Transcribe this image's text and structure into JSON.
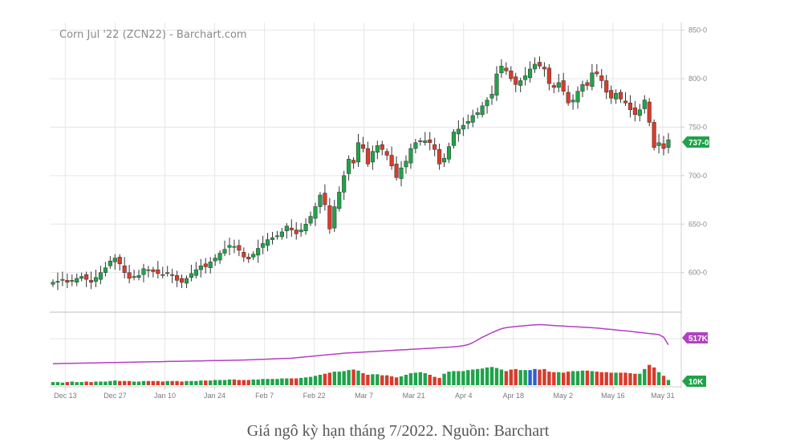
{
  "caption": "Giá ngô kỳ hạn tháng 7/2022. Nguồn: Barchart",
  "chart_data": {
    "type": "candlestick",
    "title": "Corn Jul '22 (ZCN22) - Barchart.com",
    "price_axis": {
      "ticks": [
        "850-0",
        "800-0",
        "750-0",
        "700-0",
        "650-0",
        "600-0"
      ],
      "tick_values": [
        850,
        800,
        750,
        700,
        650,
        600
      ],
      "ylim": [
        560,
        858
      ]
    },
    "x_tick_labels": [
      "Dec 13",
      "Dec 27",
      "Jan 10",
      "Jan 24",
      "Feb 7",
      "Feb 22",
      "Mar 7",
      "Mar 21",
      "Apr 4",
      "Apr 18",
      "May 2",
      "May 16",
      "May 31"
    ],
    "last_price_label": "737-0",
    "open_interest_label": "517K",
    "volume_label": "10K",
    "colors": {
      "up": "#1fa34a",
      "down": "#d93b2b",
      "open_interest": "#b43fc4",
      "neutral_volume": "#2b5fd6",
      "grid": "#e6e6e6"
    },
    "closes": [
      590,
      591,
      593,
      590,
      592,
      594,
      596,
      593,
      590,
      595,
      600,
      605,
      612,
      615,
      609,
      600,
      594,
      596,
      597,
      604,
      603,
      601,
      599,
      598,
      600,
      597,
      592,
      590,
      594,
      599,
      603,
      607,
      606,
      611,
      615,
      620,
      624,
      628,
      627,
      623,
      616,
      614,
      619,
      625,
      630,
      634,
      636,
      638,
      642,
      648,
      644,
      640,
      644,
      650,
      658,
      668,
      680,
      670,
      645,
      668,
      683,
      700,
      717,
      713,
      734,
      728,
      712,
      725,
      731,
      727,
      721,
      710,
      698,
      708,
      715,
      728,
      734,
      735,
      736,
      734,
      727,
      712,
      718,
      730,
      745,
      748,
      752,
      756,
      762,
      765,
      772,
      778,
      784,
      805,
      813,
      808,
      800,
      794,
      798,
      803,
      810,
      815,
      813,
      810,
      795,
      791,
      796,
      787,
      775,
      778,
      787,
      794,
      793,
      806,
      805,
      798,
      786,
      780,
      785,
      779,
      775,
      768,
      763,
      768,
      778,
      755,
      729,
      734,
      728,
      737
    ],
    "volume": [
      6,
      6,
      5,
      6,
      7,
      6,
      6,
      7,
      6,
      7,
      7,
      7,
      8,
      9,
      8,
      8,
      8,
      7,
      7,
      8,
      8,
      8,
      8,
      7,
      8,
      8,
      8,
      7,
      8,
      8,
      8,
      9,
      9,
      9,
      10,
      10,
      10,
      11,
      11,
      10,
      10,
      10,
      11,
      11,
      12,
      12,
      12,
      12,
      13,
      13,
      13,
      13,
      14,
      15,
      16,
      18,
      20,
      22,
      24,
      26,
      26,
      27,
      29,
      30,
      28,
      23,
      20,
      21,
      21,
      19,
      19,
      17,
      15,
      17,
      20,
      23,
      24,
      25,
      23,
      20,
      16,
      14,
      22,
      26,
      27,
      27,
      27,
      29,
      30,
      31,
      32,
      34,
      35,
      33,
      30,
      27,
      30,
      31,
      29,
      29,
      29,
      31,
      30,
      31,
      26,
      25,
      25,
      24,
      26,
      27,
      27,
      28,
      28,
      27,
      26,
      25,
      25,
      24,
      24,
      24,
      24,
      23,
      22,
      22,
      31,
      39,
      34,
      25,
      18,
      10
    ],
    "open_interest": [
      310,
      311,
      312,
      313,
      314,
      315,
      316,
      317,
      318,
      319,
      320,
      321,
      322,
      323,
      324,
      325,
      326,
      327,
      328,
      329,
      330,
      331,
      332,
      333,
      334,
      335,
      336,
      337,
      338,
      339,
      340,
      341,
      342,
      343,
      344,
      345,
      346,
      347,
      348,
      349,
      350,
      352,
      354,
      356,
      358,
      360,
      362,
      364,
      366,
      368,
      370,
      375,
      380,
      385,
      390,
      395,
      400,
      405,
      410,
      415,
      420,
      425,
      428,
      431,
      434,
      437,
      440,
      443,
      446,
      449,
      452,
      455,
      458,
      461,
      464,
      467,
      470,
      473,
      476,
      479,
      482,
      485,
      488,
      491,
      495,
      500,
      508,
      518,
      540,
      570,
      600,
      625,
      650,
      672,
      693,
      705,
      712,
      717,
      722,
      727,
      732,
      736,
      738,
      736,
      732,
      728,
      725,
      722,
      719,
      716,
      713,
      710,
      707,
      704,
      700,
      695,
      690,
      685,
      680,
      675,
      670,
      664,
      658,
      652,
      646,
      640,
      634,
      628,
      600,
      517
    ]
  }
}
